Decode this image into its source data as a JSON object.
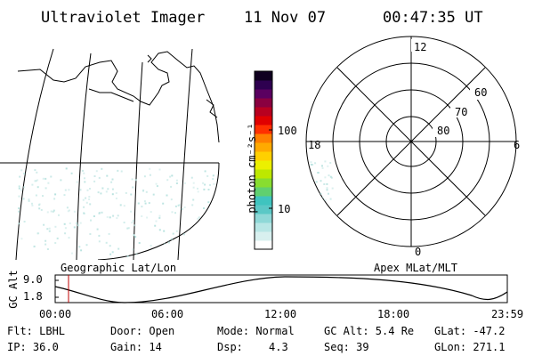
{
  "header": {
    "title": "Ultraviolet Imager",
    "date": "11 Nov 07",
    "time": "00:47:35 UT"
  },
  "colorbar": {
    "unit_label": "photon cm⁻²s⁻¹",
    "ticks": [
      {
        "label": "100",
        "value": 100
      },
      {
        "label": "10",
        "value": 10
      }
    ],
    "colors": [
      "#ffffff",
      "#d8f0ef",
      "#b8e6e5",
      "#8fd8d7",
      "#5bc8c6",
      "#3fc4bf",
      "#60d070",
      "#88dd30",
      "#bde800",
      "#ecf000",
      "#ffd000",
      "#ffaa00",
      "#ff8000",
      "#ff3000",
      "#e00000",
      "#b80020",
      "#8a0040",
      "#5a0060",
      "#2e0050",
      "#100020"
    ]
  },
  "polar": {
    "mlt_labels": {
      "top": "12",
      "right": "6",
      "bottom": "0",
      "left": "18"
    },
    "lat_labels": [
      "60",
      "70",
      "80"
    ]
  },
  "panels": {
    "left_caption": "Geographic Lat/Lon",
    "right_caption": "Apex MLat/MLT"
  },
  "orbit": {
    "ylabel": "GC Alt",
    "yticks": [
      "9.0",
      "1.8"
    ],
    "xticks": [
      "00:00",
      "06:00",
      "12:00",
      "18:00",
      "23:59"
    ],
    "marker_time": "00:47:35"
  },
  "status": {
    "row1": [
      "Flt: LBHL",
      "Door: Open",
      "Mode: Normal",
      "GC Alt: 5.4 Re",
      "GLat: -47.2"
    ],
    "row2_labels": [
      "IP: 36.0",
      "Gain: 14",
      "Dsp:",
      "Seq: 39",
      "GLon: 271.1"
    ],
    "dsp_value": "4.3"
  }
}
